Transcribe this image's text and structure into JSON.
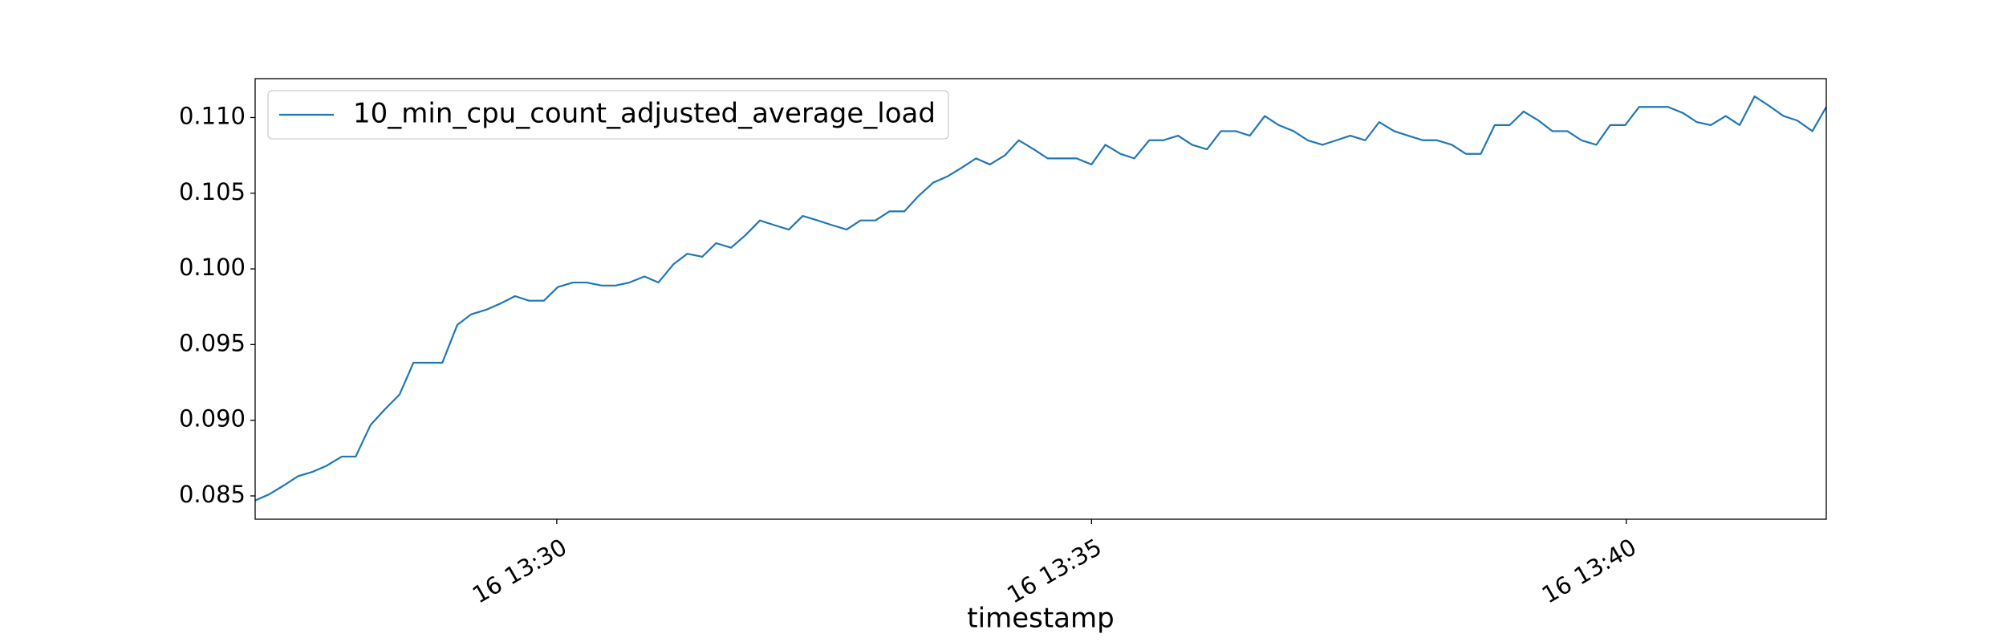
{
  "chart_data": {
    "type": "line",
    "xlabel": "timestamp",
    "x": [
      27.18,
      27.31,
      27.45,
      27.58,
      27.72,
      27.85,
      27.99,
      28.12,
      28.26,
      28.39,
      28.53,
      28.66,
      28.8,
      28.93,
      29.07,
      29.2,
      29.34,
      29.47,
      29.61,
      29.74,
      29.88,
      30.01,
      30.15,
      30.28,
      30.42,
      30.55,
      30.68,
      30.82,
      30.95,
      31.09,
      31.22,
      31.36,
      31.49,
      31.63,
      31.76,
      31.9,
      32.03,
      32.17,
      32.3,
      32.44,
      32.57,
      32.71,
      32.84,
      32.98,
      33.11,
      33.25,
      33.38,
      33.52,
      33.65,
      33.79,
      33.92,
      34.05,
      34.19,
      34.32,
      34.46,
      34.59,
      34.73,
      34.86,
      35.0,
      35.13,
      35.27,
      35.4,
      35.54,
      35.67,
      35.81,
      35.94,
      36.08,
      36.21,
      36.35,
      36.48,
      36.62,
      36.75,
      36.89,
      37.02,
      37.16,
      37.29,
      37.42,
      37.56,
      37.69,
      37.83,
      37.96,
      38.1,
      38.23,
      38.37,
      38.5,
      38.64,
      38.77,
      38.91,
      39.04,
      39.18,
      39.31,
      39.45,
      39.58,
      39.72,
      39.85,
      39.99,
      40.12,
      40.26,
      40.39,
      40.53,
      40.66,
      40.79,
      40.93,
      41.06,
      41.2,
      41.33,
      41.47,
      41.6,
      41.74,
      41.87
    ],
    "series": [
      {
        "name": "10_min_cpu_count_adjusted_average_load",
        "color": "#1f77b4",
        "values": [
          0.0847,
          0.0851,
          0.0857,
          0.0863,
          0.0866,
          0.087,
          0.0876,
          0.0876,
          0.0897,
          0.0907,
          0.0917,
          0.0938,
          0.0938,
          0.0938,
          0.0963,
          0.097,
          0.0973,
          0.0977,
          0.0982,
          0.0979,
          0.0979,
          0.0988,
          0.0991,
          0.0991,
          0.0989,
          0.0989,
          0.0991,
          0.0995,
          0.0991,
          0.1003,
          0.101,
          0.1008,
          0.1017,
          0.1014,
          0.1022,
          0.1032,
          0.1029,
          0.1026,
          0.1035,
          0.1032,
          0.1029,
          0.1026,
          0.1032,
          0.1032,
          0.1038,
          0.1038,
          0.1048,
          0.1057,
          0.1061,
          0.1067,
          0.1073,
          0.1069,
          0.1075,
          0.1085,
          0.1079,
          0.1073,
          0.1073,
          0.1073,
          0.1069,
          0.1082,
          0.1076,
          0.1073,
          0.1085,
          0.1085,
          0.1088,
          0.1082,
          0.1079,
          0.1091,
          0.1091,
          0.1088,
          0.1101,
          0.1095,
          0.1091,
          0.1085,
          0.1082,
          0.1085,
          0.1088,
          0.1085,
          0.1097,
          0.1091,
          0.1088,
          0.1085,
          0.1085,
          0.1082,
          0.1076,
          0.1076,
          0.1095,
          0.1095,
          0.1104,
          0.1098,
          0.1091,
          0.1091,
          0.1085,
          0.1082,
          0.1095,
          0.1095,
          0.1107,
          0.1107,
          0.1107,
          0.1103,
          0.1097,
          0.1095,
          0.1101,
          0.1095,
          0.1114,
          0.1108,
          0.1101,
          0.1098,
          0.1091,
          0.1107
        ]
      }
    ],
    "xlim": [
      27.18,
      41.87
    ],
    "xticks": [
      {
        "value": 30,
        "label": "16 13:30"
      },
      {
        "value": 35,
        "label": "16 13:35"
      },
      {
        "value": 40,
        "label": "16 13:40"
      }
    ],
    "ylim": [
      0.08346,
      0.11257
    ],
    "yticks": [
      0.085,
      {
        "value": 0.09,
        "label": "0.090"
      },
      0.095,
      {
        "value": 0.1,
        "label": "0.100"
      },
      0.105,
      {
        "value": 0.11,
        "label": "0.110"
      }
    ],
    "grid": false,
    "legend": "upper left"
  }
}
